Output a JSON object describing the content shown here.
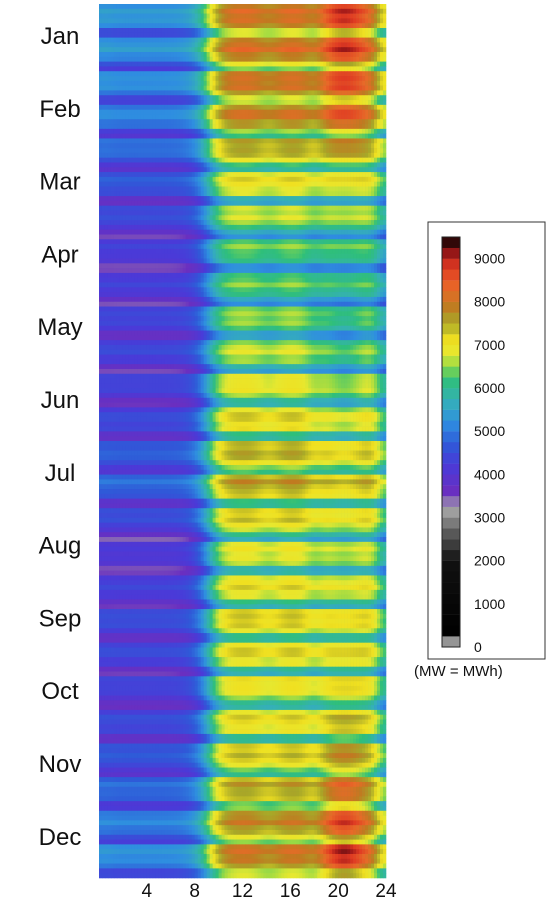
{
  "chart_data": {
    "type": "heatmap",
    "title": "",
    "xlabel": "",
    "ylabel": "",
    "x_range": [
      0,
      24
    ],
    "x_ticks": [
      4,
      8,
      12,
      16,
      20,
      24
    ],
    "y_labels": [
      "Jan",
      "Feb",
      "Mar",
      "Apr",
      "May",
      "Jun",
      "Jul",
      "Aug",
      "Sep",
      "Oct",
      "Nov",
      "Dec"
    ],
    "colorbar": {
      "ticks": [
        0,
        1000,
        2000,
        3000,
        4000,
        5000,
        6000,
        7000,
        8000,
        9000
      ],
      "range": [
        0,
        9500
      ],
      "stops": [
        {
          "value": 0,
          "color": "#ffffff"
        },
        {
          "value": 300,
          "color": "#000000"
        },
        {
          "value": 2000,
          "color": "#111111"
        },
        {
          "value": 2600,
          "color": "#555555"
        },
        {
          "value": 3200,
          "color": "#a8a8a8"
        },
        {
          "value": 3600,
          "color": "#6a2fc0"
        },
        {
          "value": 4200,
          "color": "#4a3ad8"
        },
        {
          "value": 4700,
          "color": "#2f5ad8"
        },
        {
          "value": 5200,
          "color": "#2f8ee0"
        },
        {
          "value": 5700,
          "color": "#35b0b8"
        },
        {
          "value": 6200,
          "color": "#2fbf7a"
        },
        {
          "value": 6500,
          "color": "#8ed848"
        },
        {
          "value": 6800,
          "color": "#e6e830"
        },
        {
          "value": 7100,
          "color": "#f0e020"
        },
        {
          "value": 7500,
          "color": "#a8a828"
        },
        {
          "value": 7900,
          "color": "#c07a20"
        },
        {
          "value": 8300,
          "color": "#e86a28"
        },
        {
          "value": 8800,
          "color": "#e03a22"
        },
        {
          "value": 9100,
          "color": "#a01818"
        },
        {
          "value": 9500,
          "color": "#000000"
        }
      ],
      "unit_note": "(MW = MWh)"
    },
    "monthly_profile": [
      {
        "month": "Jan",
        "night": 5200,
        "day": 8000,
        "evening": 8700
      },
      {
        "month": "Feb",
        "night": 5000,
        "day": 7900,
        "evening": 8400
      },
      {
        "month": "Mar",
        "night": 4500,
        "day": 6900,
        "evening": 6700
      },
      {
        "month": "Apr",
        "night": 4100,
        "day": 6200,
        "evening": 6000
      },
      {
        "month": "May",
        "night": 4300,
        "day": 6500,
        "evening": 5900
      },
      {
        "month": "Jun",
        "night": 4200,
        "day": 7000,
        "evening": 6400
      },
      {
        "month": "Jul",
        "night": 4800,
        "day": 7600,
        "evening": 7100
      },
      {
        "month": "Aug",
        "night": 4000,
        "day": 6800,
        "evening": 6400
      },
      {
        "month": "Sep",
        "night": 4400,
        "day": 7200,
        "evening": 6900
      },
      {
        "month": "Oct",
        "night": 4200,
        "day": 6900,
        "evening": 7000
      },
      {
        "month": "Nov",
        "night": 4600,
        "day": 7300,
        "evening": 7800
      },
      {
        "month": "Dec",
        "night": 5100,
        "day": 7900,
        "evening": 8800
      }
    ]
  }
}
